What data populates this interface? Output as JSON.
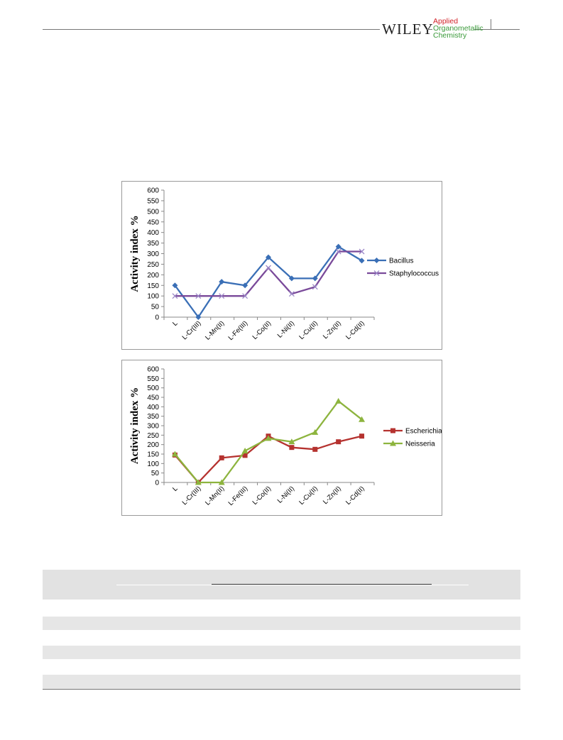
{
  "header": {
    "publisher": "WILEY",
    "journal_line1": "Applied",
    "journal_line2": "Organometallic",
    "journal_line3": "Chemistry"
  },
  "chart_data": [
    {
      "type": "line",
      "ylabel": "Activity index %",
      "ylim": [
        0,
        600
      ],
      "yticks": [
        0,
        50,
        100,
        150,
        200,
        250,
        300,
        350,
        400,
        450,
        500,
        550,
        600
      ],
      "categories": [
        "L",
        "L-Cr(III)",
        "L-Mn(II)",
        "L-Fe(III)",
        "L-Co(II)",
        "L-Ni(II)",
        "L-Cu(II)",
        "L-Zn(II)",
        "L-Cd(II)"
      ],
      "legend_position": "right",
      "series": [
        {
          "name": "Bacillus",
          "color": "#3a6fb6",
          "marker": "diamond",
          "values": [
            150,
            0,
            167,
            150,
            283,
            183,
            183,
            333,
            267
          ]
        },
        {
          "name": "Staphylococcus",
          "color": "#7a4a9a",
          "marker": "x",
          "values": [
            100,
            100,
            100,
            100,
            233,
            110,
            143,
            310,
            310
          ]
        }
      ]
    },
    {
      "type": "line",
      "ylabel": "Activity index %",
      "ylim": [
        0,
        600
      ],
      "yticks": [
        0,
        50,
        100,
        150,
        200,
        250,
        300,
        350,
        400,
        450,
        500,
        550,
        600
      ],
      "categories": [
        "L",
        "L-Cr(III)",
        "L-Mn(II)",
        "L-Fe(III)",
        "L-Co(II)",
        "L-Ni(II)",
        "L-Cu(II)",
        "L-Zn(II)",
        "L-Cd(II)"
      ],
      "legend_position": "right",
      "series": [
        {
          "name": "Escherichia",
          "color": "#b5322f",
          "marker": "square",
          "values": [
            145,
            0,
            130,
            143,
            245,
            185,
            175,
            215,
            245
          ]
        },
        {
          "name": "Neisseria",
          "color": "#8db43e",
          "marker": "triangle",
          "values": [
            150,
            0,
            0,
            167,
            233,
            215,
            265,
            430,
            333
          ]
        }
      ]
    }
  ]
}
